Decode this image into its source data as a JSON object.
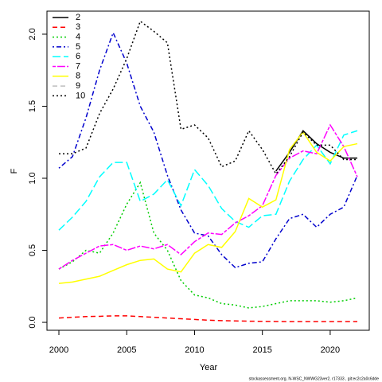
{
  "chart_data": {
    "type": "line",
    "x_label": "Year",
    "y_label": "F",
    "note": "stockassessment.org, N-WSC_NWWG23ver2, r17333 , git:ec2c2a0c6dde",
    "x": [
      2000,
      2001,
      2002,
      2003,
      2004,
      2005,
      2006,
      2007,
      2008,
      2009,
      2010,
      2011,
      2012,
      2013,
      2014,
      2015,
      2016,
      2017,
      2018,
      2019,
      2020,
      2021,
      2022
    ],
    "xlim": [
      1999.12,
      2022.88
    ],
    "xticks": [
      2000,
      2005,
      2010,
      2015,
      2020
    ],
    "ylim": [
      -0.055,
      2.16
    ],
    "yticks": [
      {
        "value": 0,
        "label": "0.0"
      },
      {
        "value": 0.5,
        "label": "0.5"
      },
      {
        "value": 1,
        "label": "1.0"
      },
      {
        "value": 1.5,
        "label": "1.5"
      },
      {
        "value": 2,
        "label": "2.0"
      }
    ],
    "legend": "top-left",
    "series": [
      {
        "name": "2",
        "color": "#000000",
        "dash": "none",
        "values": [
          null,
          null,
          null,
          null,
          null,
          null,
          null,
          null,
          null,
          null,
          null,
          null,
          null,
          null,
          null,
          null,
          1.05,
          1.18,
          1.33,
          1.24,
          1.18,
          1.14,
          1.14
        ]
      },
      {
        "name": "3",
        "color": "#ff0000",
        "dash": "6,4",
        "values": [
          0.03,
          0.035,
          0.04,
          0.042,
          0.045,
          0.045,
          0.04,
          0.035,
          0.03,
          0.025,
          0.02,
          0.015,
          0.012,
          0.01,
          0.008,
          0.007,
          0.006,
          0.005,
          0.005,
          0.005,
          0.005,
          0.005,
          0.005
        ]
      },
      {
        "name": "4",
        "color": "#00cd00",
        "dash": "2,3",
        "values": [
          0.37,
          0.42,
          0.5,
          0.48,
          0.62,
          0.82,
          0.97,
          0.62,
          0.5,
          0.29,
          0.19,
          0.17,
          0.13,
          0.12,
          0.1,
          0.11,
          0.13,
          0.15,
          0.15,
          0.15,
          0.14,
          0.15,
          0.17
        ]
      },
      {
        "name": "5",
        "color": "#0000cd",
        "dash": "2,3,6,3",
        "values": [
          1.07,
          1.15,
          1.42,
          1.75,
          2.01,
          1.8,
          1.5,
          1.32,
          1.02,
          0.78,
          0.62,
          0.6,
          0.47,
          0.38,
          0.41,
          0.42,
          0.58,
          0.72,
          0.75,
          0.66,
          0.75,
          0.8,
          1.02
        ]
      },
      {
        "name": "6",
        "color": "#00ffff",
        "dash": "10,4",
        "values": [
          0.64,
          0.73,
          0.84,
          1.01,
          1.11,
          1.11,
          0.84,
          0.89,
          0.99,
          0.81,
          1.06,
          0.95,
          0.79,
          0.7,
          0.66,
          0.74,
          0.75,
          0.98,
          1.13,
          1.23,
          1.1,
          1.3,
          1.33
        ]
      },
      {
        "name": "7",
        "color": "#ff00ff",
        "dash": "4,2,10,2",
        "values": [
          0.37,
          0.43,
          0.48,
          0.53,
          0.54,
          0.5,
          0.53,
          0.51,
          0.54,
          0.47,
          0.56,
          0.62,
          0.61,
          0.69,
          0.74,
          0.81,
          1.02,
          1.14,
          1.19,
          1.17,
          1.37,
          1.22,
          1.01
        ]
      },
      {
        "name": "8",
        "color": "#ffff00",
        "dash": "none",
        "values": [
          0.27,
          0.28,
          0.3,
          0.32,
          0.36,
          0.4,
          0.43,
          0.44,
          0.37,
          0.35,
          0.48,
          0.54,
          0.52,
          0.63,
          0.86,
          0.8,
          0.85,
          1.2,
          1.32,
          1.18,
          1.12,
          1.22,
          1.24
        ]
      },
      {
        "name": "9",
        "color": "#bebebe",
        "dash": "6,4",
        "values": [
          null,
          null,
          null,
          null,
          null,
          null,
          null,
          null,
          null,
          null,
          null,
          null,
          null,
          null,
          null,
          null,
          null,
          null,
          null,
          null,
          null,
          null,
          null
        ]
      },
      {
        "name": "10",
        "color": "#000000",
        "dash": "2,3",
        "values": [
          1.17,
          1.17,
          1.21,
          1.45,
          1.62,
          1.83,
          2.09,
          2.02,
          1.94,
          1.34,
          1.37,
          1.28,
          1.08,
          1.12,
          1.33,
          1.2,
          1.03,
          1.15,
          1.32,
          1.23,
          1.23,
          1.13,
          1.13
        ]
      }
    ]
  }
}
